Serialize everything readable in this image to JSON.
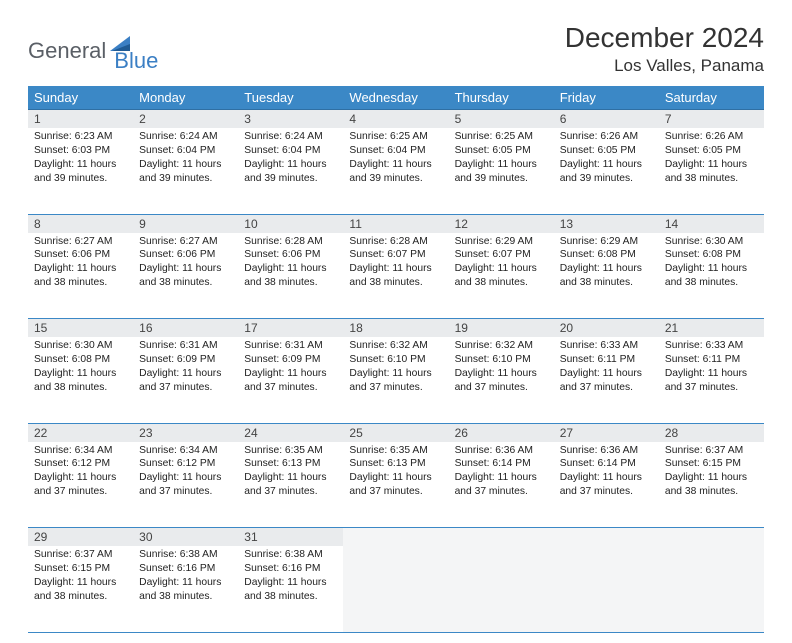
{
  "brand": {
    "part1": "General",
    "part2": "Blue"
  },
  "title": "December 2024",
  "location": "Los Valles, Panama",
  "colors": {
    "header_bg": "#3b88c6",
    "header_text": "#ffffff",
    "daynum_bg": "#e9ebed",
    "border": "#3b88c6",
    "logo_gray": "#5a5f66",
    "logo_blue": "#3b7fc4",
    "text": "#222222",
    "empty_bg": "#f4f5f6"
  },
  "weekdays": [
    "Sunday",
    "Monday",
    "Tuesday",
    "Wednesday",
    "Thursday",
    "Friday",
    "Saturday"
  ],
  "weeks": [
    {
      "days": [
        {
          "n": "1",
          "sunrise": "Sunrise: 6:23 AM",
          "sunset": "Sunset: 6:03 PM",
          "day1": "Daylight: 11 hours",
          "day2": "and 39 minutes."
        },
        {
          "n": "2",
          "sunrise": "Sunrise: 6:24 AM",
          "sunset": "Sunset: 6:04 PM",
          "day1": "Daylight: 11 hours",
          "day2": "and 39 minutes."
        },
        {
          "n": "3",
          "sunrise": "Sunrise: 6:24 AM",
          "sunset": "Sunset: 6:04 PM",
          "day1": "Daylight: 11 hours",
          "day2": "and 39 minutes."
        },
        {
          "n": "4",
          "sunrise": "Sunrise: 6:25 AM",
          "sunset": "Sunset: 6:04 PM",
          "day1": "Daylight: 11 hours",
          "day2": "and 39 minutes."
        },
        {
          "n": "5",
          "sunrise": "Sunrise: 6:25 AM",
          "sunset": "Sunset: 6:05 PM",
          "day1": "Daylight: 11 hours",
          "day2": "and 39 minutes."
        },
        {
          "n": "6",
          "sunrise": "Sunrise: 6:26 AM",
          "sunset": "Sunset: 6:05 PM",
          "day1": "Daylight: 11 hours",
          "day2": "and 39 minutes."
        },
        {
          "n": "7",
          "sunrise": "Sunrise: 6:26 AM",
          "sunset": "Sunset: 6:05 PM",
          "day1": "Daylight: 11 hours",
          "day2": "and 38 minutes."
        }
      ]
    },
    {
      "days": [
        {
          "n": "8",
          "sunrise": "Sunrise: 6:27 AM",
          "sunset": "Sunset: 6:06 PM",
          "day1": "Daylight: 11 hours",
          "day2": "and 38 minutes."
        },
        {
          "n": "9",
          "sunrise": "Sunrise: 6:27 AM",
          "sunset": "Sunset: 6:06 PM",
          "day1": "Daylight: 11 hours",
          "day2": "and 38 minutes."
        },
        {
          "n": "10",
          "sunrise": "Sunrise: 6:28 AM",
          "sunset": "Sunset: 6:06 PM",
          "day1": "Daylight: 11 hours",
          "day2": "and 38 minutes."
        },
        {
          "n": "11",
          "sunrise": "Sunrise: 6:28 AM",
          "sunset": "Sunset: 6:07 PM",
          "day1": "Daylight: 11 hours",
          "day2": "and 38 minutes."
        },
        {
          "n": "12",
          "sunrise": "Sunrise: 6:29 AM",
          "sunset": "Sunset: 6:07 PM",
          "day1": "Daylight: 11 hours",
          "day2": "and 38 minutes."
        },
        {
          "n": "13",
          "sunrise": "Sunrise: 6:29 AM",
          "sunset": "Sunset: 6:08 PM",
          "day1": "Daylight: 11 hours",
          "day2": "and 38 minutes."
        },
        {
          "n": "14",
          "sunrise": "Sunrise: 6:30 AM",
          "sunset": "Sunset: 6:08 PM",
          "day1": "Daylight: 11 hours",
          "day2": "and 38 minutes."
        }
      ]
    },
    {
      "days": [
        {
          "n": "15",
          "sunrise": "Sunrise: 6:30 AM",
          "sunset": "Sunset: 6:08 PM",
          "day1": "Daylight: 11 hours",
          "day2": "and 38 minutes."
        },
        {
          "n": "16",
          "sunrise": "Sunrise: 6:31 AM",
          "sunset": "Sunset: 6:09 PM",
          "day1": "Daylight: 11 hours",
          "day2": "and 37 minutes."
        },
        {
          "n": "17",
          "sunrise": "Sunrise: 6:31 AM",
          "sunset": "Sunset: 6:09 PM",
          "day1": "Daylight: 11 hours",
          "day2": "and 37 minutes."
        },
        {
          "n": "18",
          "sunrise": "Sunrise: 6:32 AM",
          "sunset": "Sunset: 6:10 PM",
          "day1": "Daylight: 11 hours",
          "day2": "and 37 minutes."
        },
        {
          "n": "19",
          "sunrise": "Sunrise: 6:32 AM",
          "sunset": "Sunset: 6:10 PM",
          "day1": "Daylight: 11 hours",
          "day2": "and 37 minutes."
        },
        {
          "n": "20",
          "sunrise": "Sunrise: 6:33 AM",
          "sunset": "Sunset: 6:11 PM",
          "day1": "Daylight: 11 hours",
          "day2": "and 37 minutes."
        },
        {
          "n": "21",
          "sunrise": "Sunrise: 6:33 AM",
          "sunset": "Sunset: 6:11 PM",
          "day1": "Daylight: 11 hours",
          "day2": "and 37 minutes."
        }
      ]
    },
    {
      "days": [
        {
          "n": "22",
          "sunrise": "Sunrise: 6:34 AM",
          "sunset": "Sunset: 6:12 PM",
          "day1": "Daylight: 11 hours",
          "day2": "and 37 minutes."
        },
        {
          "n": "23",
          "sunrise": "Sunrise: 6:34 AM",
          "sunset": "Sunset: 6:12 PM",
          "day1": "Daylight: 11 hours",
          "day2": "and 37 minutes."
        },
        {
          "n": "24",
          "sunrise": "Sunrise: 6:35 AM",
          "sunset": "Sunset: 6:13 PM",
          "day1": "Daylight: 11 hours",
          "day2": "and 37 minutes."
        },
        {
          "n": "25",
          "sunrise": "Sunrise: 6:35 AM",
          "sunset": "Sunset: 6:13 PM",
          "day1": "Daylight: 11 hours",
          "day2": "and 37 minutes."
        },
        {
          "n": "26",
          "sunrise": "Sunrise: 6:36 AM",
          "sunset": "Sunset: 6:14 PM",
          "day1": "Daylight: 11 hours",
          "day2": "and 37 minutes."
        },
        {
          "n": "27",
          "sunrise": "Sunrise: 6:36 AM",
          "sunset": "Sunset: 6:14 PM",
          "day1": "Daylight: 11 hours",
          "day2": "and 37 minutes."
        },
        {
          "n": "28",
          "sunrise": "Sunrise: 6:37 AM",
          "sunset": "Sunset: 6:15 PM",
          "day1": "Daylight: 11 hours",
          "day2": "and 38 minutes."
        }
      ]
    },
    {
      "days": [
        {
          "n": "29",
          "sunrise": "Sunrise: 6:37 AM",
          "sunset": "Sunset: 6:15 PM",
          "day1": "Daylight: 11 hours",
          "day2": "and 38 minutes."
        },
        {
          "n": "30",
          "sunrise": "Sunrise: 6:38 AM",
          "sunset": "Sunset: 6:16 PM",
          "day1": "Daylight: 11 hours",
          "day2": "and 38 minutes."
        },
        {
          "n": "31",
          "sunrise": "Sunrise: 6:38 AM",
          "sunset": "Sunset: 6:16 PM",
          "day1": "Daylight: 11 hours",
          "day2": "and 38 minutes."
        },
        {
          "empty": true
        },
        {
          "empty": true
        },
        {
          "empty": true
        },
        {
          "empty": true
        }
      ]
    }
  ]
}
